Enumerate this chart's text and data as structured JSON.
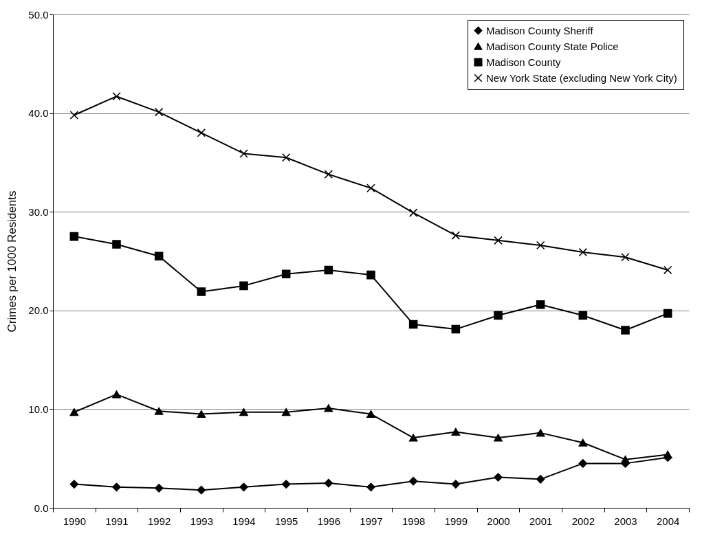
{
  "chart_data": {
    "type": "line",
    "ylabel": "Crimes per 1000 Residents",
    "categories": [
      "1990",
      "1991",
      "1992",
      "1993",
      "1994",
      "1995",
      "1996",
      "1997",
      "1998",
      "1999",
      "2000",
      "2001",
      "2002",
      "2003",
      "2004"
    ],
    "ylim": [
      0,
      50
    ],
    "yticks": [
      {
        "value": 0,
        "label": "0.0"
      },
      {
        "value": 10,
        "label": "10.0"
      },
      {
        "value": 20,
        "label": "20.0"
      },
      {
        "value": 30,
        "label": "30.0"
      },
      {
        "value": 40,
        "label": "40.0"
      },
      {
        "value": 50,
        "label": "50.0"
      }
    ],
    "grid": "y",
    "legend": "top right",
    "line_style": "solid",
    "series": [
      {
        "name": "Madison County Sheriff",
        "color": "#000000",
        "marker": "diamond",
        "values": [
          2.4,
          2.1,
          2.0,
          1.8,
          2.1,
          2.4,
          2.5,
          2.1,
          2.7,
          2.4,
          3.1,
          2.9,
          4.5,
          4.5,
          5.1
        ]
      },
      {
        "name": "Madison County State Police",
        "color": "#000000",
        "marker": "triangle",
        "values": [
          9.7,
          11.5,
          9.8,
          9.5,
          9.7,
          9.7,
          10.1,
          9.5,
          7.1,
          7.7,
          7.1,
          7.6,
          6.6,
          4.9,
          5.4
        ]
      },
      {
        "name": "Madison County",
        "color": "#000000",
        "marker": "square",
        "values": [
          27.5,
          26.7,
          25.5,
          21.9,
          22.5,
          23.7,
          24.1,
          23.6,
          18.6,
          18.1,
          19.5,
          20.6,
          19.5,
          18.0,
          19.7
        ]
      },
      {
        "name": "New York State (excluding New York City)",
        "color": "#000000",
        "marker": "cross",
        "values": [
          39.8,
          41.7,
          40.1,
          38.0,
          35.9,
          35.5,
          33.8,
          32.4,
          29.9,
          27.6,
          27.1,
          26.6,
          25.9,
          25.4,
          24.1
        ]
      }
    ]
  }
}
